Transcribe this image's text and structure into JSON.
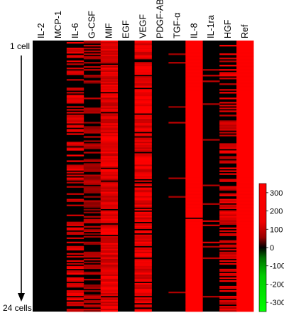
{
  "chart_data": {
    "type": "heatmap",
    "columns": [
      "IL-2",
      "MCP-1",
      "IL-6",
      "G-CSF",
      "MIF",
      "EGF",
      "VEGF",
      "PDGF-AB",
      "TGF-α",
      "IL-8",
      "IL-1ra",
      "HGF",
      "Ref"
    ],
    "row_axis": {
      "top_label": "1 cell",
      "bottom_label": "24 cells"
    },
    "colorbar": {
      "range": [
        -350,
        350
      ],
      "ticks": [
        300,
        200,
        100,
        0,
        -100,
        -200,
        -300
      ],
      "colors": {
        "negative": "#00ff00",
        "zero": "#000000",
        "positive": "#ff0000"
      }
    },
    "column_intensity": {
      "IL-2": 0.01,
      "MCP-1": 0.01,
      "IL-6": 0.55,
      "G-CSF": 0.45,
      "MIF": 0.95,
      "EGF": 0.0,
      "VEGF": 0.9,
      "PDGF-AB": 0.01,
      "TGF-α": 0.06,
      "IL-8": 0.99,
      "IL-1ra": 0.05,
      "HGF": 0.55,
      "Ref": 1.0
    },
    "column_levels": {
      "IL-2": 0,
      "MCP-1": 0,
      "IL-6": 320,
      "G-CSF": 150,
      "MIF": 320,
      "EGF": 0,
      "VEGF": 330,
      "PDGF-AB": 0,
      "TGF-α": 200,
      "IL-8": 340,
      "IL-1ra": 250,
      "HGF": 300,
      "Ref": 350
    }
  }
}
